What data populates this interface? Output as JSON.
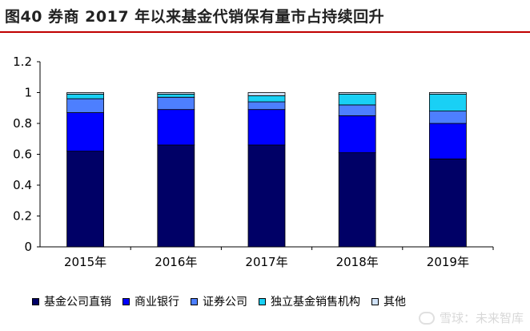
{
  "title": "图40 券商 2017 年以来基金代销保有量市占持续回升",
  "watermark": "雪球：未来智库",
  "colors": {
    "title_rule": "#c00000",
    "series": [
      "#000066",
      "#0000ff",
      "#4d7fff",
      "#19d0f5",
      "#d0e2f8"
    ]
  },
  "chart_data": {
    "type": "bar",
    "stacked": true,
    "categories": [
      "2015年",
      "2016年",
      "2017年",
      "2018年",
      "2019年"
    ],
    "series": [
      {
        "name": "基金公司直销",
        "values": [
          0.62,
          0.66,
          0.66,
          0.61,
          0.57
        ]
      },
      {
        "name": "商业银行",
        "values": [
          0.25,
          0.23,
          0.23,
          0.24,
          0.23
        ]
      },
      {
        "name": "证券公司",
        "values": [
          0.09,
          0.08,
          0.05,
          0.07,
          0.08
        ]
      },
      {
        "name": "独立基金销售机构",
        "values": [
          0.03,
          0.02,
          0.04,
          0.07,
          0.11
        ]
      },
      {
        "name": "其他",
        "values": [
          0.01,
          0.01,
          0.02,
          0.01,
          0.01
        ]
      }
    ],
    "yticks": [
      "0",
      "0.2",
      "0.4",
      "0.6",
      "0.8",
      "1",
      "1.2"
    ],
    "ylim": [
      0,
      1.2
    ],
    "grid": false,
    "legend_position": "bottom"
  }
}
